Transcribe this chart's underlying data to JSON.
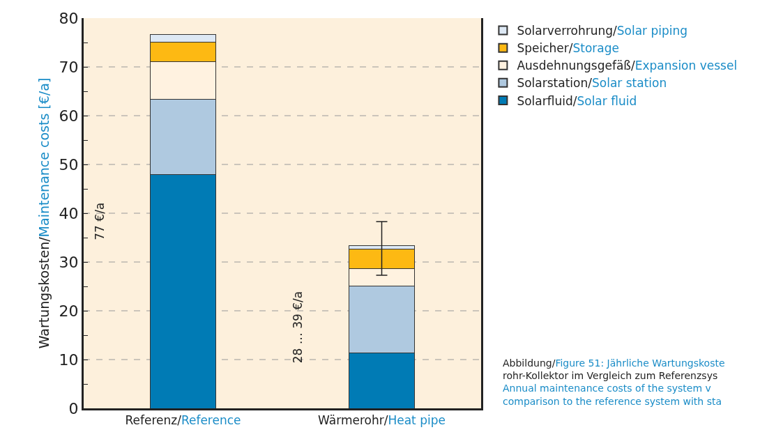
{
  "chart_data": {
    "type": "bar",
    "stacked": true,
    "ylabel": "Wartungskosten/Maintenance costs [€/a]",
    "categories": [
      "Referenz/Reference",
      "Wärmerohr/Heat pipe"
    ],
    "series": [
      {
        "name": "Solarfluid/Solar fluid",
        "color": "#007bb5",
        "values": [
          48,
          11.3
        ]
      },
      {
        "name": "Solarstation/Solar station",
        "color": "#afc9e0",
        "values": [
          15.4,
          13.8
        ]
      },
      {
        "name": "Ausdehnungsgefäß/Expansion vessel",
        "color": "#fff2e0",
        "values": [
          7.7,
          3.6
        ]
      },
      {
        "name": "Speicher/Storage",
        "color": "#fdb913",
        "values": [
          4,
          4
        ]
      },
      {
        "name": "Solarverrohrung/Solar piping",
        "color": "#dde8f4",
        "values": [
          1.5,
          0.6
        ],
        "errors": [
          null,
          [
            27.3,
            38.3
          ]
        ]
      }
    ],
    "ylim": [
      0,
      80
    ],
    "yticks": [
      0,
      {
        "value": 5,
        "label": null
      },
      10,
      {
        "value": 15,
        "label": null
      },
      20,
      {
        "value": 25,
        "label": null
      },
      30,
      {
        "value": 35,
        "label": null
      },
      40,
      {
        "value": 45,
        "label": null
      },
      50,
      {
        "value": 55,
        "label": null
      },
      60,
      {
        "value": 65,
        "label": null
      },
      70,
      {
        "value": 75,
        "label": null
      },
      80
    ],
    "grid": "y",
    "legend": "top right",
    "annotations": [
      "77 €/a",
      "28 … 39 €/a",
      "Abbildung/Figure 51: Jährliche Wartungskoste\nrohr-Kollektor im Vergleich zum Referenzsys\nAnnual maintenance costs of the system v\ncomparison to the reference system with sta"
    ]
  }
}
